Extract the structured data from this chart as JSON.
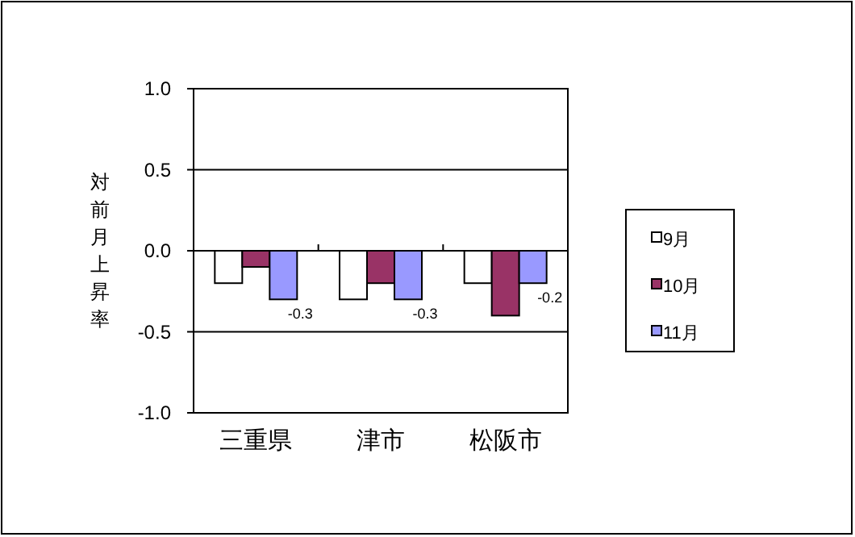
{
  "chart_data": {
    "type": "bar",
    "ylabel": "対前月上昇率",
    "categories": [
      "三重県",
      "津市",
      "松阪市"
    ],
    "series": [
      {
        "name": "9月",
        "color": "#ffffff",
        "values": [
          -0.2,
          -0.3,
          -0.2
        ]
      },
      {
        "name": "10月",
        "color": "#993366",
        "values": [
          -0.1,
          -0.2,
          -0.4
        ]
      },
      {
        "name": "11月",
        "color": "#9999ff",
        "values": [
          -0.3,
          -0.3,
          -0.2
        ],
        "value_labels": [
          "-0.3",
          "-0.3",
          "-0.2"
        ]
      }
    ],
    "ylim": [
      -1.0,
      1.0
    ],
    "yticks": [
      {
        "value": 1.0,
        "label": "1.0"
      },
      {
        "value": 0.5,
        "label": "0.5"
      },
      {
        "value": 0.0,
        "label": "0.0"
      },
      {
        "value": -0.5,
        "label": "-0.5"
      },
      {
        "value": -1.0,
        "label": "-1.0"
      }
    ],
    "grid": "y",
    "legend": "right"
  }
}
